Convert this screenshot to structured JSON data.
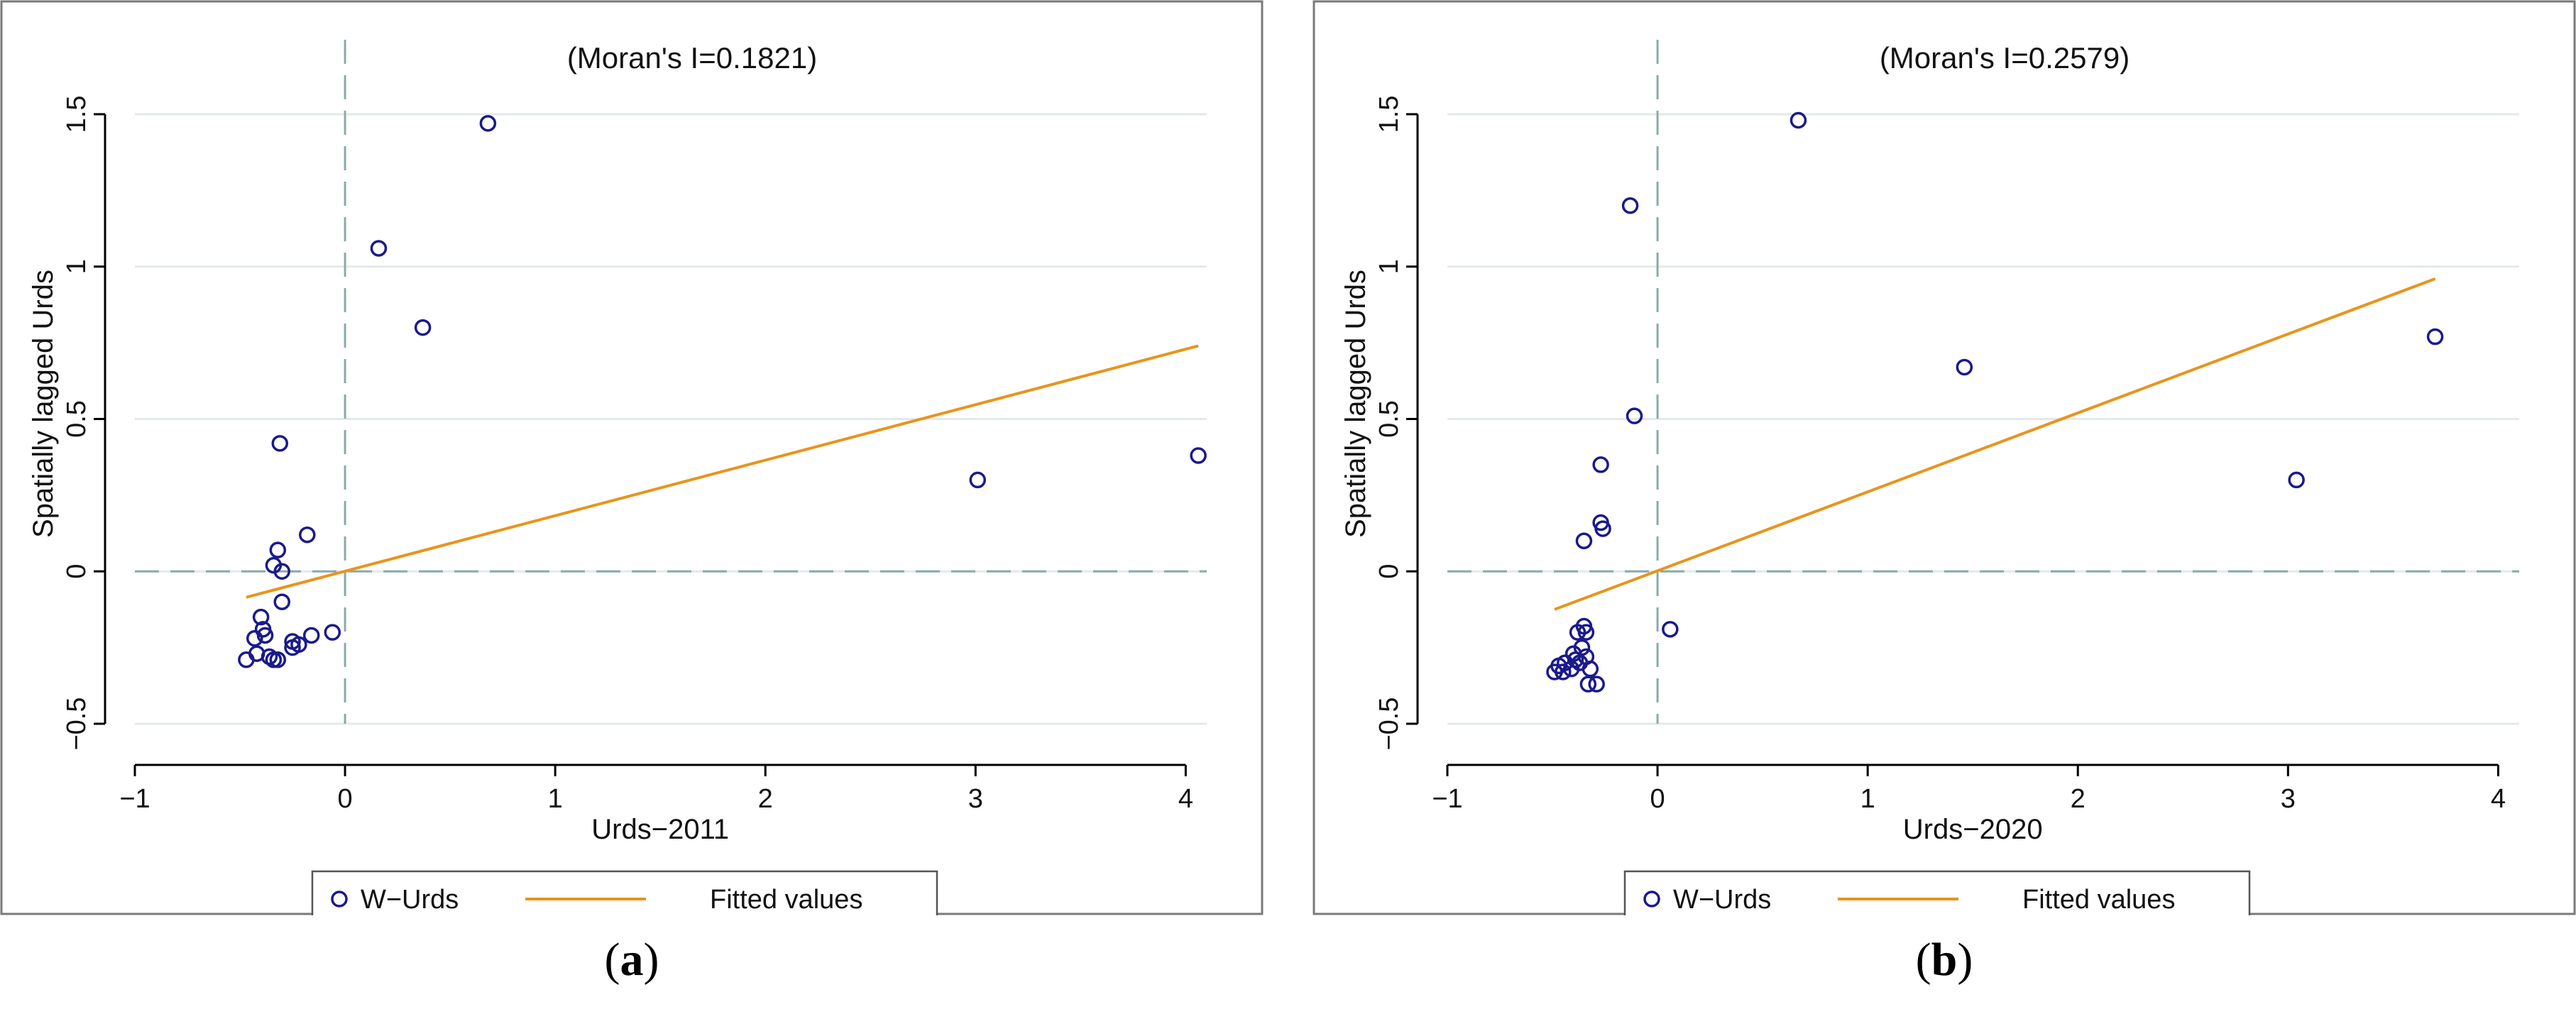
{
  "chart_data": [
    {
      "type": "scatter",
      "title": "(Moran's I=0.1821)",
      "xlabel": "Urds−2011",
      "ylabel": "Spatially lagged Urds",
      "xlim": [
        -1,
        4.1
      ],
      "ylim": [
        -0.5,
        1.6
      ],
      "xticks": [
        -1,
        0,
        1,
        2,
        3,
        4
      ],
      "xtick_labels": [
        "−1",
        "0",
        "1",
        "2",
        "3",
        "4"
      ],
      "yticks": [
        -0.5,
        0,
        0.5,
        1,
        1.5
      ],
      "ytick_labels": [
        "−0.5",
        "0",
        "0.5",
        "1",
        "1.5"
      ],
      "grid": true,
      "reference_lines": {
        "x": 0,
        "y": 0
      },
      "legend": {
        "position": "bottom",
        "entries": [
          "W−Urds",
          "Fitted values"
        ]
      },
      "series": [
        {
          "name": "W−Urds",
          "kind": "points",
          "x": [
            0.68,
            0.16,
            0.37,
            -0.31,
            -0.18,
            -0.32,
            -0.34,
            -0.3,
            -0.4,
            -0.3,
            -0.39,
            -0.43,
            -0.38,
            -0.25,
            -0.06,
            -0.16,
            -0.22,
            -0.25,
            -0.42,
            -0.47,
            -0.36,
            -0.34,
            -0.32,
            3.01,
            4.06
          ],
          "y": [
            1.47,
            1.06,
            0.8,
            0.42,
            0.12,
            0.07,
            0.02,
            0.0,
            -0.15,
            -0.1,
            -0.19,
            -0.22,
            -0.21,
            -0.23,
            -0.2,
            -0.21,
            -0.24,
            -0.25,
            -0.27,
            -0.29,
            -0.28,
            -0.29,
            -0.29,
            0.3,
            0.38
          ]
        },
        {
          "name": "Fitted values",
          "kind": "line",
          "x": [
            -0.47,
            4.06
          ],
          "y": [
            -0.085,
            0.74
          ]
        }
      ]
    },
    {
      "type": "scatter",
      "title": "(Moran's I=0.2579)",
      "xlabel": "Urds−2020",
      "ylabel": "Spatially lagged Urds",
      "xlim": [
        -1,
        4.1
      ],
      "ylim": [
        -0.5,
        1.6
      ],
      "xticks": [
        -1,
        0,
        1,
        2,
        3,
        4
      ],
      "xtick_labels": [
        "−1",
        "0",
        "1",
        "2",
        "3",
        "4"
      ],
      "yticks": [
        -0.5,
        0,
        0.5,
        1,
        1.5
      ],
      "ytick_labels": [
        "−0.5",
        "0",
        "0.5",
        "1",
        "1.5"
      ],
      "grid": true,
      "reference_lines": {
        "x": 0,
        "y": 0
      },
      "legend": {
        "position": "bottom",
        "entries": [
          "W−Urds",
          "Fitted values"
        ]
      },
      "series": [
        {
          "name": "W−Urds",
          "kind": "points",
          "x": [
            0.67,
            -0.13,
            -0.11,
            -0.27,
            -0.27,
            -0.26,
            -0.35,
            1.46,
            3.04,
            3.7,
            0.06,
            -0.38,
            -0.35,
            -0.34,
            -0.36,
            -0.4,
            -0.44,
            -0.47,
            -0.49,
            -0.41,
            -0.34,
            -0.32,
            -0.39,
            -0.29,
            -0.33,
            -0.37,
            -0.45
          ],
          "y": [
            1.48,
            1.2,
            0.51,
            0.35,
            0.16,
            0.14,
            0.1,
            0.67,
            0.3,
            0.77,
            -0.19,
            -0.2,
            -0.18,
            -0.2,
            -0.25,
            -0.27,
            -0.3,
            -0.31,
            -0.33,
            -0.32,
            -0.28,
            -0.32,
            -0.29,
            -0.37,
            -0.37,
            -0.3,
            -0.33
          ]
        },
        {
          "name": "Fitted values",
          "kind": "line",
          "x": [
            -0.49,
            3.7
          ],
          "y": [
            -0.125,
            0.96
          ]
        }
      ]
    }
  ],
  "captions": [
    "a",
    "b"
  ],
  "colors": {
    "points": "#1a1a8c",
    "fit": "#e8941c",
    "refline": "#8aaaaa",
    "grid": "#e3e9ea",
    "axis": "#000000",
    "border": "#7a7a7a"
  }
}
